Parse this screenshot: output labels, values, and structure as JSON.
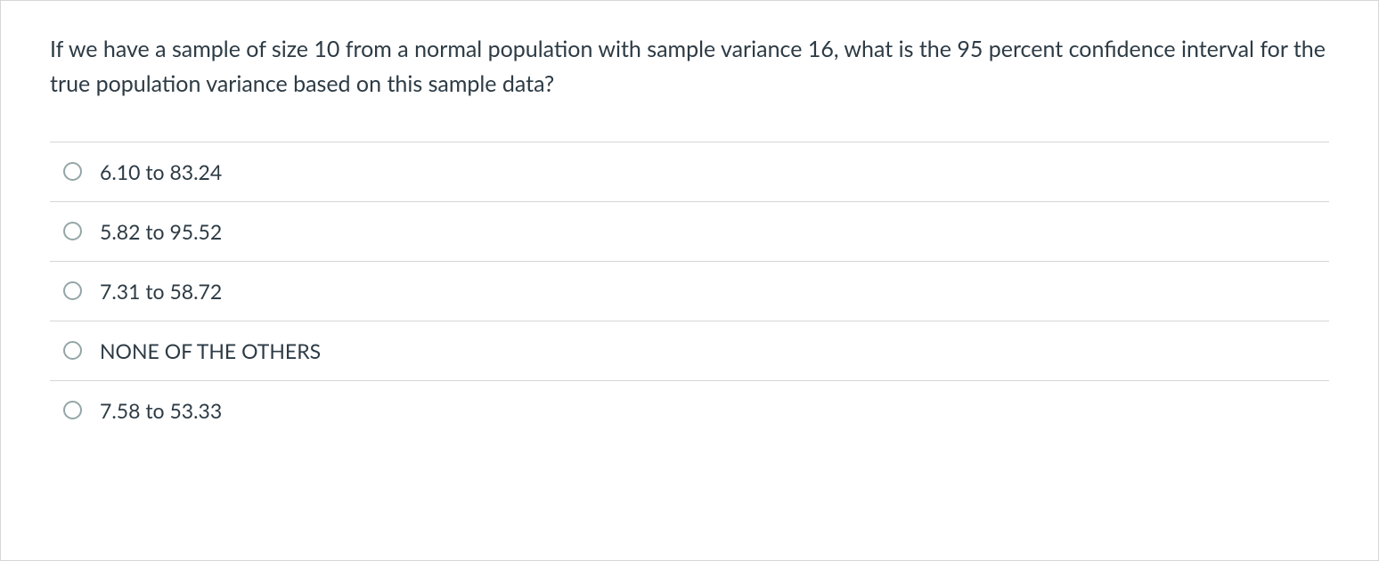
{
  "question": {
    "text": "If we have a sample of size 10 from a normal population with sample variance 16, what is the 95 percent confidence interval for the true population variance based on this sample data?"
  },
  "options": [
    {
      "label": "6.10 to 83.24",
      "value": "a"
    },
    {
      "label": "5.82 to 95.52",
      "value": "b"
    },
    {
      "label": "7.31 to 58.72",
      "value": "c"
    },
    {
      "label": "NONE OF THE OTHERS",
      "value": "d"
    },
    {
      "label": "7.58 to 53.33",
      "value": "e"
    }
  ],
  "colors": {
    "text": "#2d3b45",
    "border": "#d6d6d6",
    "radio_border": "#95a5a6",
    "background": "#ffffff"
  }
}
